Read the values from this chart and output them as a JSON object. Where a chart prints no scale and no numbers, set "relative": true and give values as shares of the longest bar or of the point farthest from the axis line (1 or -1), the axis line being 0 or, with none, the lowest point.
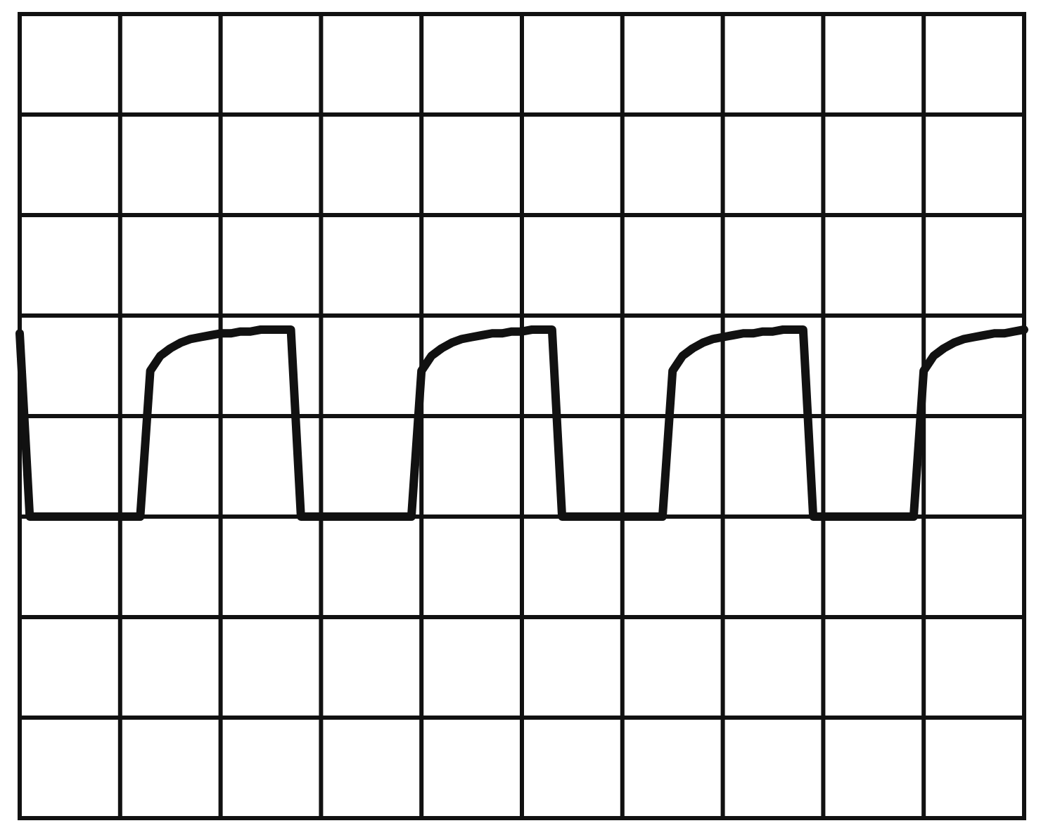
{
  "chart_data": {
    "type": "line",
    "relative": true,
    "grid": true,
    "marker": "none",
    "line_style": "solid",
    "categories": [
      null,
      null,
      null,
      null,
      null,
      null,
      null,
      null,
      null,
      null,
      null,
      null,
      null,
      null,
      null,
      null,
      null,
      null,
      null,
      null,
      null,
      null,
      null,
      null,
      null,
      null,
      null,
      null,
      null,
      null,
      null,
      null,
      null,
      null,
      null,
      null,
      null,
      null,
      null,
      null,
      null,
      null,
      null,
      null,
      null,
      null,
      null,
      null,
      null,
      null,
      null,
      null,
      null,
      null,
      null,
      null,
      null,
      null,
      null,
      null,
      null,
      null,
      null,
      null,
      null,
      null,
      null,
      null,
      null,
      null,
      null,
      null,
      null,
      null,
      null,
      null,
      null,
      null,
      null,
      null,
      null,
      null,
      null,
      null,
      null,
      null,
      null,
      null,
      null,
      null,
      null,
      null,
      null,
      null,
      null,
      null,
      null,
      null,
      null,
      null,
      null
    ],
    "series": [
      {
        "color": "#111111",
        "values": [
          0.98,
          0,
          0,
          0,
          0,
          0,
          0,
          0,
          0,
          0,
          0,
          0,
          0,
          0.78,
          0.86,
          0.9,
          0.93,
          0.95,
          0.96,
          0.97,
          0.98,
          0.98,
          0.99,
          0.99,
          1,
          1,
          1,
          1,
          0,
          0,
          0,
          0,
          0,
          0,
          0,
          0,
          0,
          0,
          0,
          0,
          0.78,
          0.86,
          0.9,
          0.93,
          0.95,
          0.96,
          0.97,
          0.98,
          0.98,
          0.99,
          0.99,
          1,
          1,
          1,
          0,
          0,
          0,
          0,
          0,
          0,
          0,
          0,
          0,
          0,
          0,
          0.78,
          0.86,
          0.9,
          0.93,
          0.95,
          0.96,
          0.97,
          0.98,
          0.98,
          0.99,
          0.99,
          1,
          1,
          1,
          0,
          0,
          0,
          0,
          0,
          0,
          0,
          0,
          0,
          0,
          0,
          0.78,
          0.86,
          0.9,
          0.93,
          0.95,
          0.96,
          0.97,
          0.98,
          0.98,
          0.99,
          1
        ]
      }
    ]
  }
}
